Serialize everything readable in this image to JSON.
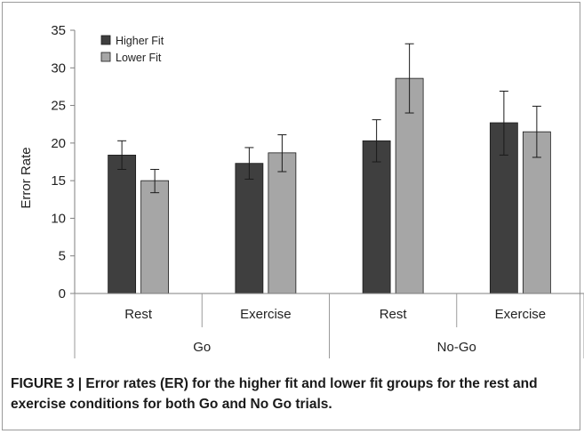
{
  "chart_data": {
    "type": "bar",
    "ylabel": "Error Rate",
    "ylim": [
      0,
      35
    ],
    "yticks": [
      0,
      5,
      10,
      15,
      20,
      25,
      30,
      35
    ],
    "grid": false,
    "legend_position": "top-left",
    "categories": [
      {
        "label": "Rest",
        "group": "Go"
      },
      {
        "label": "Exercise",
        "group": "Go"
      },
      {
        "label": "Rest",
        "group": "No-Go"
      },
      {
        "label": "Exercise",
        "group": "No-Go"
      }
    ],
    "groups": [
      "Go",
      "No-Go"
    ],
    "series": [
      {
        "name": "Higher Fit",
        "color": "#3f3f3f",
        "values": [
          18.4,
          17.3,
          20.3,
          22.7
        ],
        "error_low": [
          16.5,
          15.2,
          17.5,
          18.4
        ],
        "error_high": [
          20.3,
          19.4,
          23.1,
          26.9
        ]
      },
      {
        "name": "Lower Fit",
        "color": "#a6a6a6",
        "values": [
          15.0,
          18.7,
          28.6,
          21.5
        ],
        "error_low": [
          13.4,
          16.2,
          24.0,
          18.1
        ],
        "error_high": [
          16.5,
          21.1,
          33.2,
          24.9
        ]
      }
    ]
  },
  "caption": "FIGURE 3 | Error rates (ER) for the higher fit and lower fit groups for the rest and exercise conditions for both Go and No Go trials."
}
